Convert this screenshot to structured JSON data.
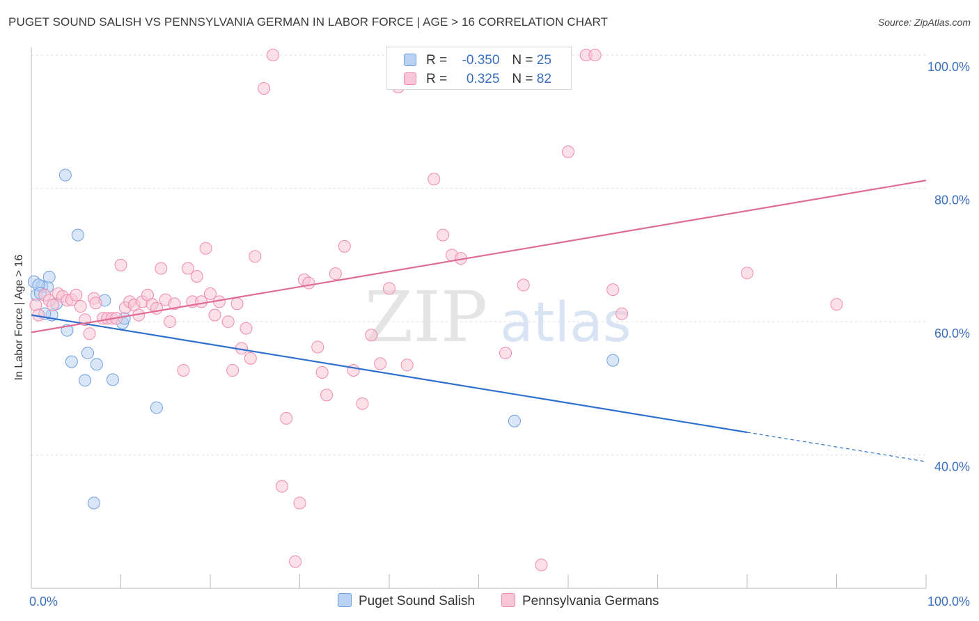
{
  "title": "PUGET SOUND SALISH VS PENNSYLVANIA GERMAN IN LABOR FORCE | AGE > 16 CORRELATION CHART",
  "source": "Source: ZipAtlas.com",
  "watermark": {
    "zip": "ZIP",
    "atlas": "atlas"
  },
  "legend": {
    "rows": [
      {
        "r_label": "R =",
        "r_value": "-0.350",
        "n_label": "N =",
        "n_value": "25"
      },
      {
        "r_label": "R =",
        "r_value": "0.325",
        "n_label": "N =",
        "n_value": "82"
      }
    ]
  },
  "chart_data": {
    "type": "scatter",
    "title": "PUGET SOUND SALISH VS PENNSYLVANIA GERMAN IN LABOR FORCE | AGE > 16 CORRELATION CHART",
    "xlabel": "",
    "ylabel": "In Labor Force | Age > 16",
    "xlim": [
      0,
      100
    ],
    "ylim": [
      20,
      102
    ],
    "x_tick_labels": [
      "0.0%",
      "100.0%"
    ],
    "y_ticks": [
      40,
      60,
      80,
      100
    ],
    "y_tick_labels": [
      "40.0%",
      "60.0%",
      "80.0%",
      "100.0%"
    ],
    "grid": true,
    "legend_position": "top-center",
    "series": [
      {
        "name": "Puget Sound Salish",
        "color": "#6f9fe0",
        "fill": "#b9d1f3",
        "line_color": "#2f6fcf",
        "r": -0.35,
        "n": 25,
        "trend": {
          "x": [
            0,
            80
          ],
          "y": [
            61.0,
            43.4
          ],
          "dash_to": [
            100,
            39.0
          ]
        },
        "x": [
          0.3,
          0.6,
          1.2,
          1.8,
          2.0,
          2.3,
          2.8,
          3.8,
          4.0,
          4.5,
          5.2,
          6.0,
          6.3,
          7.0,
          7.3,
          8.2,
          9.1,
          10.2,
          10.4,
          14.0,
          54.0,
          65.0,
          0.8,
          1.0,
          1.5
        ],
        "y": [
          66.0,
          64.0,
          65.3,
          65.2,
          66.7,
          61.0,
          62.7,
          82.0,
          58.7,
          54.0,
          73.0,
          51.2,
          55.3,
          32.8,
          53.6,
          63.2,
          51.3,
          59.8,
          60.5,
          47.1,
          45.1,
          54.2,
          65.5,
          64.3,
          61.2
        ]
      },
      {
        "name": "Pennsylvania Germans",
        "color": "#f08aab",
        "fill": "#f8c6d6",
        "line_color": "#e06b95",
        "r": 0.325,
        "n": 82,
        "trend": {
          "x": [
            0,
            100
          ],
          "y": [
            58.4,
            81.2
          ]
        },
        "x": [
          0.5,
          0.8,
          1.5,
          2.0,
          2.4,
          3.0,
          3.5,
          4.0,
          4.5,
          5.0,
          5.5,
          6.0,
          6.5,
          7.0,
          7.2,
          8.0,
          8.5,
          9.0,
          9.5,
          10.0,
          10.5,
          11.0,
          11.5,
          12.0,
          12.4,
          13.0,
          13.5,
          14.0,
          14.5,
          15.0,
          15.5,
          16.0,
          17.0,
          17.5,
          18.0,
          18.5,
          19.0,
          19.5,
          20.0,
          20.5,
          21.0,
          22.0,
          22.5,
          23.0,
          23.5,
          24.0,
          24.5,
          25.0,
          26.0,
          27.0,
          28.0,
          28.5,
          29.5,
          30.0,
          30.5,
          31.0,
          32.0,
          32.5,
          33.0,
          34.0,
          35.0,
          36.0,
          37.0,
          38.0,
          39.0,
          40.0,
          41.0,
          42.0,
          45.0,
          46.0,
          47.0,
          48.0,
          53.0,
          55.0,
          57.0,
          60.0,
          62.0,
          63.0,
          65.0,
          66.0,
          80.0,
          90.0
        ],
        "y": [
          62.5,
          61.0,
          64.0,
          63.2,
          62.5,
          64.2,
          63.8,
          63.2,
          63.3,
          64.0,
          62.3,
          60.3,
          58.2,
          63.5,
          62.8,
          60.5,
          60.5,
          60.5,
          60.5,
          68.5,
          62.1,
          63.0,
          62.5,
          61.0,
          63.0,
          64.0,
          62.6,
          62.0,
          68.0,
          63.3,
          60.0,
          62.7,
          52.7,
          68.0,
          63.0,
          66.8,
          63.0,
          71.0,
          64.2,
          61.0,
          63.0,
          60.0,
          52.7,
          62.7,
          56.0,
          59.0,
          54.5,
          69.8,
          95.0,
          100.0,
          35.3,
          45.5,
          24.0,
          32.8,
          66.3,
          65.8,
          56.2,
          52.4,
          49.0,
          67.2,
          71.3,
          52.7,
          47.7,
          58.0,
          53.7,
          65.0,
          95.2,
          53.5,
          81.4,
          73.0,
          70.0,
          69.5,
          55.3,
          65.5,
          23.5,
          85.5,
          100.0,
          100.0,
          64.8,
          61.2,
          67.3,
          62.6
        ]
      }
    ]
  }
}
